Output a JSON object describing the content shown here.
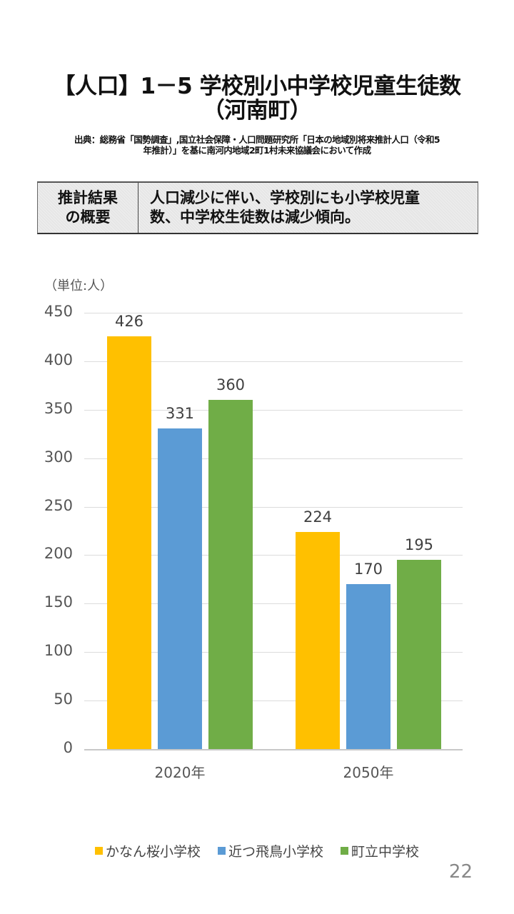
{
  "slide": {
    "title_line1": "【人口】1－5 学校別小中学校児童生徒数",
    "title_line2": "（河南町）",
    "source_line1": "出典：総務省「国勢調査」,国立社会保障・人口問題研究所「日本の地域別将来推計人口（令和5",
    "source_line2": "年推計）」を基に南河内地域2町1村未来協議会において作成",
    "summary_label_line1": "推計結果",
    "summary_label_line2": "の概要",
    "summary_text_line1": "人口減少に伴い、学校別にも小学校児童",
    "summary_text_line2": "数、中学校生徒数は減少傾向。",
    "page_number": "22"
  },
  "chart_data": {
    "type": "bar",
    "title": "【人口】1－5 学校別小中学校児童生徒数（河南町）",
    "unit_label": "（単位:人）",
    "xlabel": "",
    "ylabel": "（単位:人）",
    "categories": [
      "2020年",
      "2050年"
    ],
    "series": [
      {
        "name": "かなん桜小学校",
        "color": "#FFC000",
        "values": [
          426,
          224
        ]
      },
      {
        "name": "近つ飛鳥小学校",
        "color": "#5B9BD5",
        "values": [
          331,
          170
        ]
      },
      {
        "name": "町立中学校",
        "color": "#70AD47",
        "values": [
          360,
          195
        ]
      }
    ],
    "ylim": [
      0,
      450
    ],
    "yticks": [
      "450",
      "400",
      "350",
      "300",
      "250",
      "200",
      "150",
      "100",
      "50",
      "0"
    ],
    "grid": true,
    "legend_position": "bottom",
    "data_labels": true
  }
}
